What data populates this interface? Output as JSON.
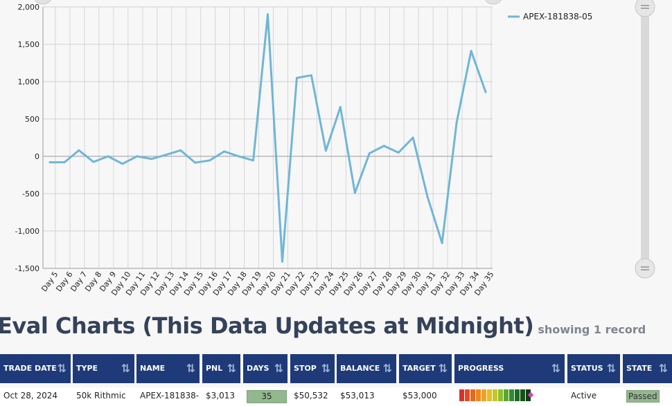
{
  "chart_data": {
    "type": "line",
    "x": [
      "Day 5",
      "Day 6",
      "Day 7",
      "Day 8",
      "Day 9",
      "Day 10",
      "Day 11",
      "Day 12",
      "Day 13",
      "Day 14",
      "Day 15",
      "Day 16",
      "Day 17",
      "Day 18",
      "Day 19",
      "Day 20",
      "Day 21",
      "Day 22",
      "Day 23",
      "Day 24",
      "Day 25",
      "Day 26",
      "Day 27",
      "Day 28",
      "Day 29",
      "Day 30",
      "Day 31",
      "Day 32",
      "Day 33",
      "Day 34",
      "Day 35"
    ],
    "series": [
      {
        "name": "APEX-181838-05",
        "color": "#6fb6d8",
        "values": [
          -80,
          -80,
          80,
          -75,
          0,
          -100,
          0,
          -35,
          20,
          80,
          -85,
          -55,
          65,
          0,
          -55,
          1900,
          -1410,
          1050,
          1085,
          75,
          660,
          -490,
          40,
          140,
          50,
          250,
          -545,
          -1160,
          450,
          1410,
          860
        ]
      }
    ],
    "ylim": [
      -1500,
      2000
    ],
    "yticks": [
      "2,000",
      "1,500",
      "1,000",
      "500",
      "0",
      "-500",
      "-1,000",
      "-1,500"
    ],
    "grid": true,
    "legend_position": "top-right"
  },
  "section": {
    "title": "Eval Charts (This Data Updates at Midnight)",
    "record_count": "showing 1 record"
  },
  "table": {
    "headers": [
      "TRADE DATE",
      "TYPE",
      "NAME",
      "PNL",
      "DAYS",
      "STOP",
      "BALANCE",
      "TARGET",
      "PROGRESS",
      "STATUS",
      "STATE"
    ],
    "sort_icon": "sort-icon",
    "row": {
      "trade_date": "Oct 28, 2024",
      "type": "50k Rithmic",
      "name": "APEX-181838-",
      "pnl": "$3,013",
      "days": "35",
      "stop": "$50,532",
      "balance": "$53,013",
      "target": "$53,000",
      "status": "Active",
      "state": "Passed"
    },
    "header_color": "#1e3a78",
    "progress_colors": [
      "#d9322b",
      "#e04a24",
      "#e8661f",
      "#ee861c",
      "#f1a21c",
      "#e9bd22",
      "#c5c52a",
      "#8fbf2f",
      "#5aa632",
      "#2f8a30",
      "#1d6b25",
      "#145218",
      "#0f3d12"
    ],
    "progress_marker_color": "#e040c0"
  }
}
